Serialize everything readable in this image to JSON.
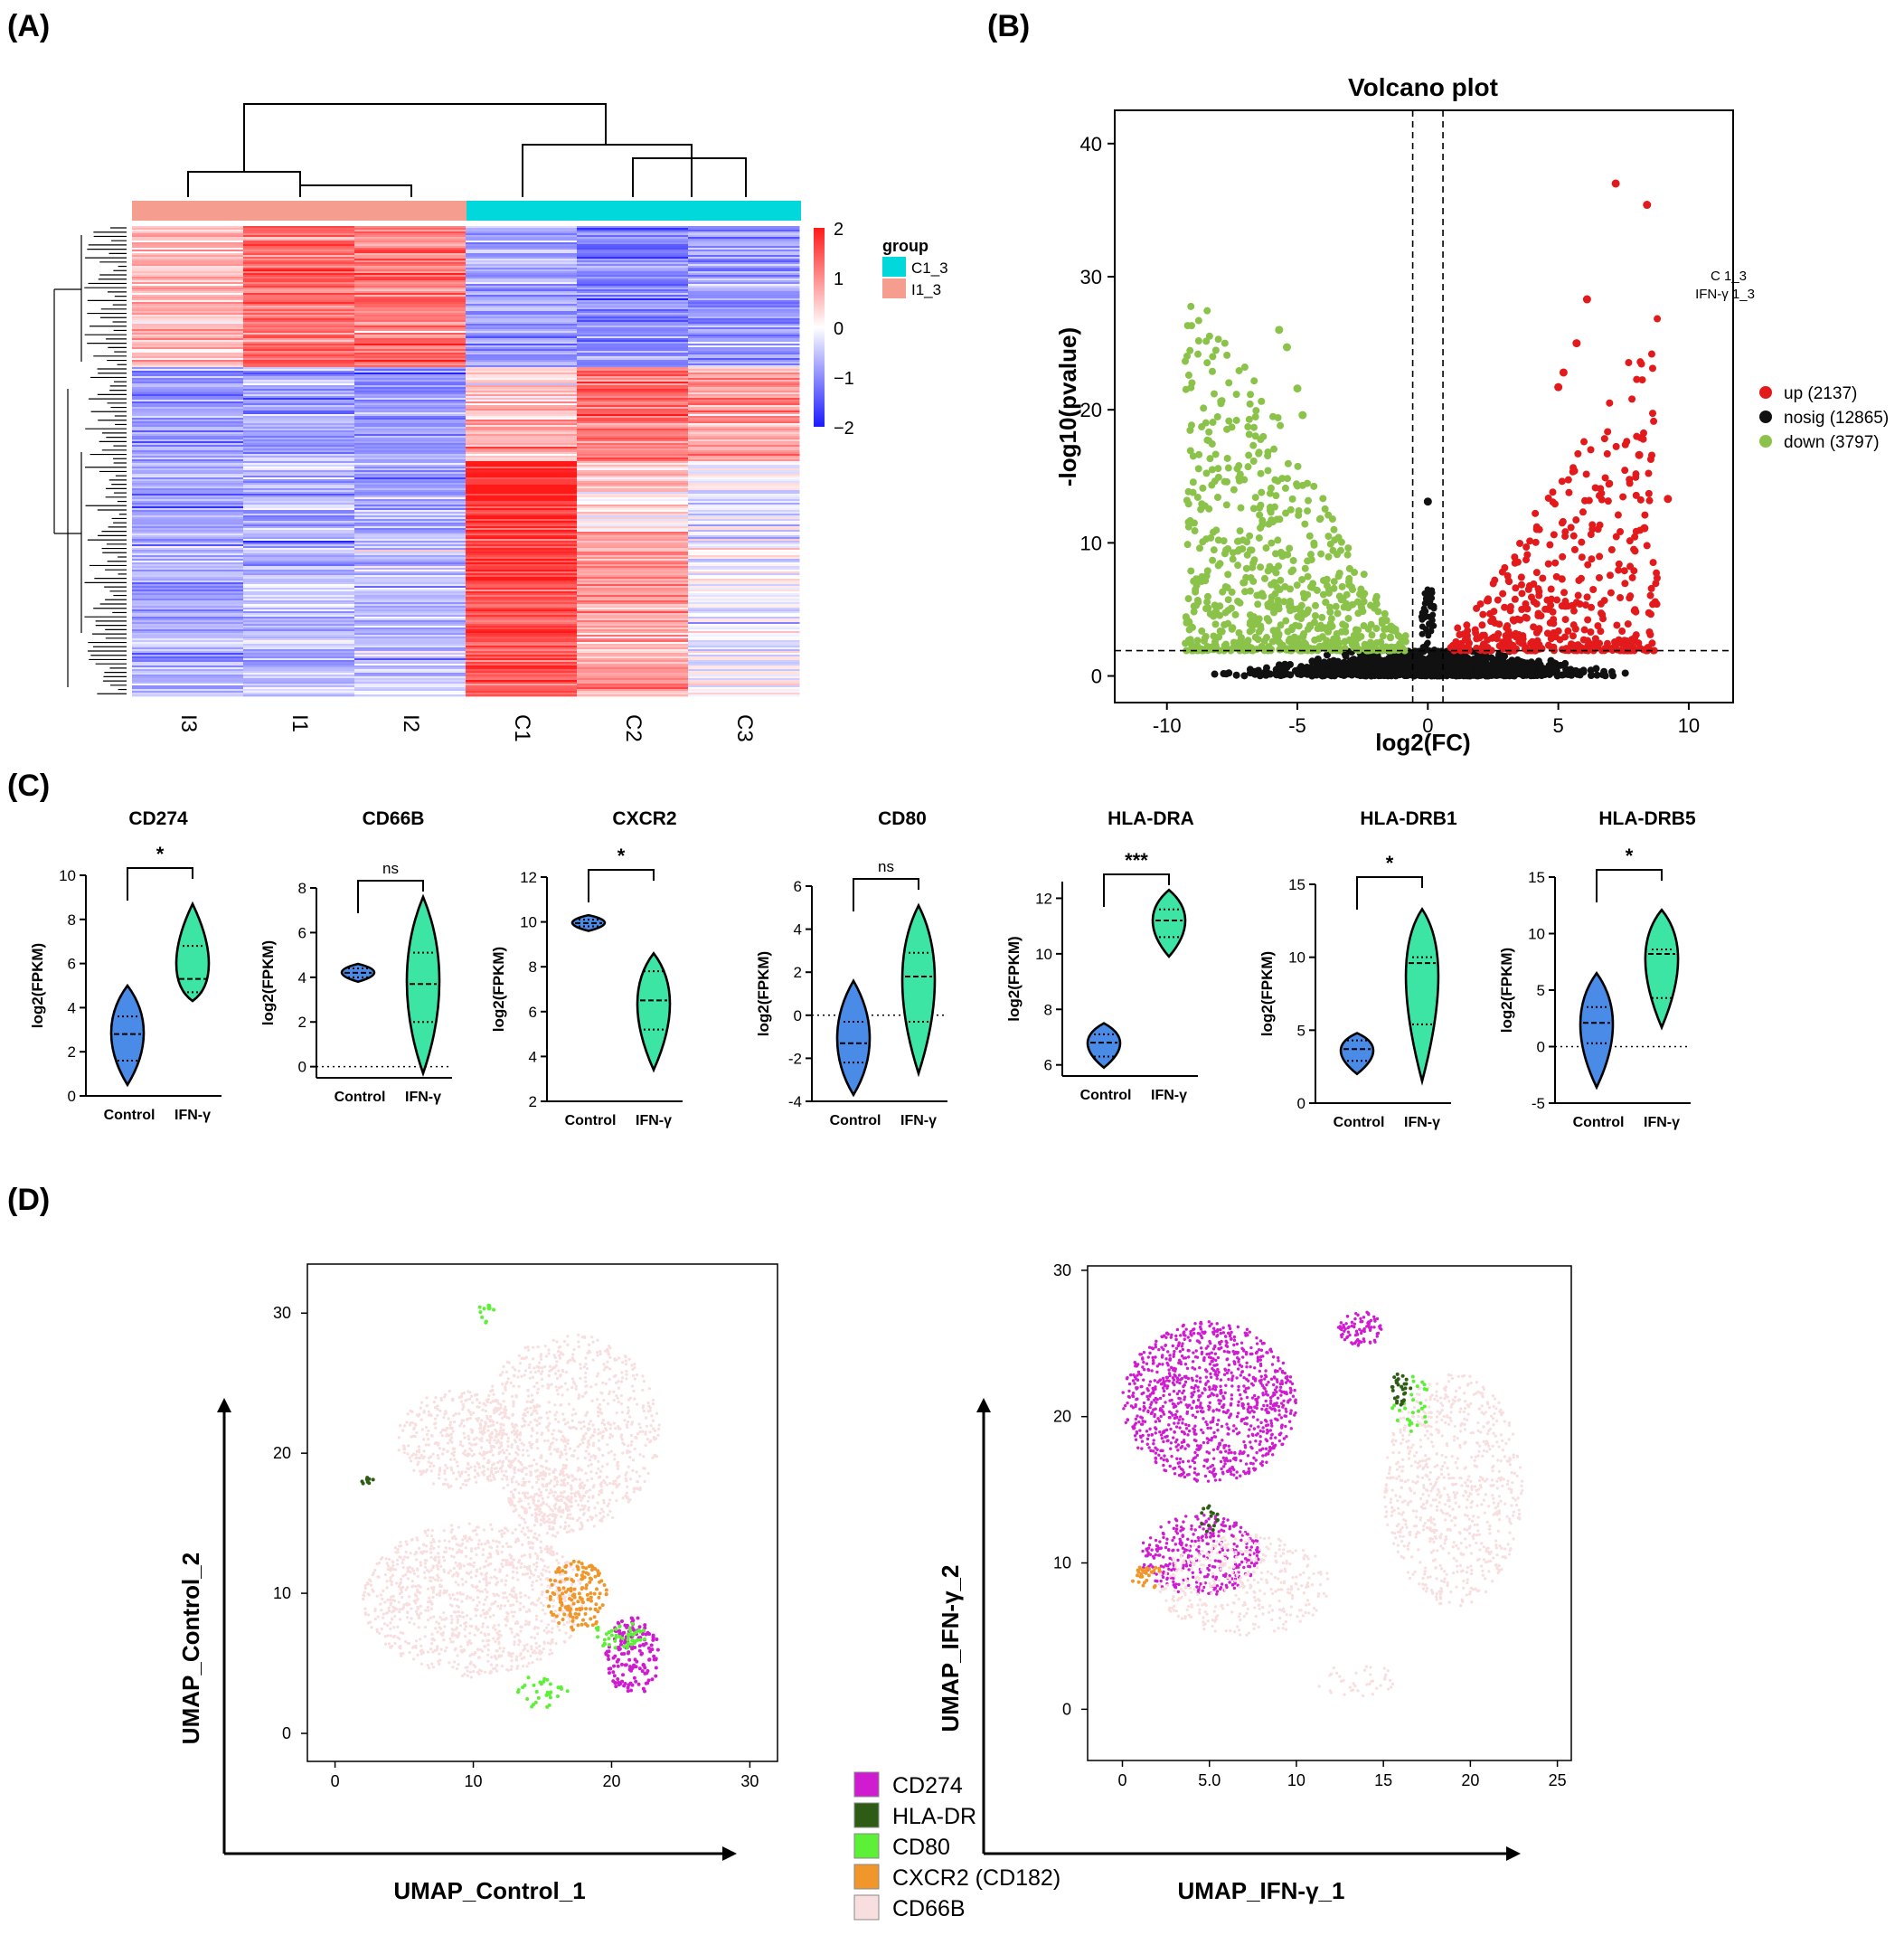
{
  "panels": {
    "a": "(A)",
    "b": "(B)",
    "c": "(C)",
    "d": "(D)"
  },
  "chart_data": [
    {
      "type": "heatmap",
      "panel": "(A)",
      "columns": [
        "I3",
        "I1",
        "I2",
        "C1",
        "C2",
        "C3"
      ],
      "column_groups": [
        "I1_3",
        "I1_3",
        "I1_3",
        "C1_3",
        "C1_3",
        "C1_3"
      ],
      "colorbar": {
        "ticks": [
          "2",
          "1",
          "0",
          "−1",
          "−2"
        ],
        "range": [
          -2,
          2
        ],
        "colors": {
          "high": "#ff1a1a",
          "mid": "#ffffff",
          "low": "#1a1aff"
        }
      },
      "legend": {
        "title": "group",
        "items": [
          {
            "label": "C1_3",
            "color": "#00d8dc"
          },
          {
            "label": "I1_3",
            "color": "#f59d8e"
          }
        ]
      },
      "blocks": [
        {
          "rows": 0.3,
          "values": [
            0.6,
            1.3,
            1.2,
            -0.8,
            -1.1,
            -0.9
          ]
        },
        {
          "rows": 0.2,
          "values": [
            -0.9,
            -0.8,
            -0.9,
            0.6,
            1.3,
            0.8
          ]
        },
        {
          "rows": 0.15,
          "values": [
            -0.8,
            -0.6,
            -0.7,
            1.8,
            0.4,
            -0.2
          ]
        },
        {
          "rows": 0.35,
          "values": [
            -0.7,
            -0.5,
            -0.6,
            1.5,
            0.8,
            -0.1
          ]
        }
      ]
    },
    {
      "type": "scatter",
      "panel": "(B)",
      "title": "Volcano plot",
      "xlabel": "log2(FC)",
      "ylabel": "-log10(pvalue)",
      "xlim": [
        -12,
        11.7
      ],
      "ylim": [
        -2,
        42.5
      ],
      "xticks": [
        "-10",
        "-5",
        "0",
        "5",
        "10"
      ],
      "yticks": [
        "0",
        "10",
        "20",
        "30",
        "40"
      ],
      "thresholds": {
        "x": [
          -0.58,
          0.58
        ],
        "y": 1.9
      },
      "side_label": [
        "C 1_3",
        "IFN-γ 1_3"
      ],
      "legend": [
        {
          "label": "up (2137)",
          "color": "#e31a1c"
        },
        {
          "label": "nosig (12865)",
          "color": "#111111"
        },
        {
          "label": "down (3797)",
          "color": "#8bc34a"
        }
      ],
      "series": [
        {
          "name": "up",
          "count": 2137,
          "color": "#e31a1c"
        },
        {
          "name": "nosig",
          "count": 12865,
          "color": "#111111"
        },
        {
          "name": "down",
          "count": 3797,
          "color": "#8bc34a"
        }
      ],
      "highlight_points": [
        {
          "x": 7.2,
          "y": 37.0
        },
        {
          "x": 8.4,
          "y": 35.4
        },
        {
          "x": 6.1,
          "y": 28.3
        },
        {
          "x": 5.7,
          "y": 25.0
        },
        {
          "x": 5.2,
          "y": 22.8
        },
        {
          "x": 5.0,
          "y": 21.7
        },
        {
          "x": 8.1,
          "y": 16.6
        },
        {
          "x": 9.2,
          "y": 13.3
        },
        {
          "x": 8.3,
          "y": 11.1
        },
        {
          "x": -5.7,
          "y": 26.0
        },
        {
          "x": -5.4,
          "y": 24.7
        },
        {
          "x": -5.0,
          "y": 21.6
        },
        {
          "x": -4.8,
          "y": 19.6
        },
        {
          "x": 0.0,
          "y": 13.1
        }
      ]
    },
    {
      "type": "violin",
      "panel": "(C)",
      "ylabel": "log2(FPKM)",
      "groups": [
        "Control",
        "IFN-γ"
      ],
      "colors": [
        "#4a8be8",
        "#3de5a5"
      ],
      "genes": [
        {
          "name": "CD274",
          "sig": "*",
          "yticks": [
            "0",
            "2",
            "4",
            "6",
            "8",
            "10"
          ],
          "ymin": 0,
          "ymax": 10,
          "control": {
            "min": 0.5,
            "max": 5.0,
            "q1": 1.6,
            "median": 2.8,
            "q3": 3.6
          },
          "ifng": {
            "min": 4.3,
            "max": 8.7,
            "q1": 4.7,
            "median": 5.3,
            "q3": 6.8
          },
          "zero_line": false
        },
        {
          "name": "CD66B",
          "sig": "ns",
          "yticks": [
            "0",
            "2",
            "4",
            "6",
            "8"
          ],
          "ymin": -0.5,
          "ymax": 8,
          "control": {
            "min": 3.8,
            "max": 4.6,
            "q1": 4.0,
            "median": 4.2,
            "q3": 4.4
          },
          "ifng": {
            "min": -0.3,
            "max": 7.6,
            "q1": 2.0,
            "median": 3.7,
            "q3": 5.1
          },
          "zero_line": true
        },
        {
          "name": "CXCR2",
          "sig": "*",
          "yticks": [
            "2",
            "4",
            "6",
            "8",
            "10",
            "12"
          ],
          "ymin": 2,
          "ymax": 12,
          "control": {
            "min": 9.6,
            "max": 10.3,
            "q1": 9.8,
            "median": 9.95,
            "q3": 10.1
          },
          "ifng": {
            "min": 3.4,
            "max": 8.6,
            "q1": 5.2,
            "median": 6.5,
            "q3": 7.8
          },
          "zero_line": false
        },
        {
          "name": "CD80",
          "sig": "ns",
          "yticks": [
            "-4",
            "-2",
            "0",
            "2",
            "4",
            "6"
          ],
          "ymin": -4,
          "ymax": 6,
          "control": {
            "min": -3.7,
            "max": 1.6,
            "q1": -2.2,
            "median": -1.3,
            "q3": -0.3
          },
          "ifng": {
            "min": -2.7,
            "max": 5.1,
            "q1": -0.3,
            "median": 1.8,
            "q3": 2.9
          },
          "zero_line": true
        },
        {
          "name": "HLA-DRA",
          "sig": "***",
          "yticks": [
            "6",
            "8",
            "10",
            "12"
          ],
          "ymin": 5.6,
          "ymax": 12.6,
          "control": {
            "min": 5.9,
            "max": 7.5,
            "q1": 6.3,
            "median": 6.8,
            "q3": 7.1
          },
          "ifng": {
            "min": 9.9,
            "max": 12.3,
            "q1": 10.6,
            "median": 11.2,
            "q3": 11.6
          },
          "zero_line": false
        },
        {
          "name": "HLA-DRB1",
          "sig": "*",
          "yticks": [
            "0",
            "5",
            "10",
            "15"
          ],
          "ymin": 0,
          "ymax": 15,
          "control": {
            "min": 2.0,
            "max": 4.8,
            "q1": 2.9,
            "median": 3.7,
            "q3": 4.3
          },
          "ifng": {
            "min": 1.5,
            "max": 13.3,
            "q1": 5.4,
            "median": 9.6,
            "q3": 10.0
          },
          "zero_line": false
        },
        {
          "name": "HLA-DRB5",
          "sig": "*",
          "yticks": [
            "-5",
            "0",
            "5",
            "10",
            "15"
          ],
          "ymin": -5,
          "ymax": 15,
          "control": {
            "min": -3.6,
            "max": 6.5,
            "q1": 0.3,
            "median": 2.1,
            "q3": 3.5
          },
          "ifng": {
            "min": 1.7,
            "max": 12.1,
            "q1": 4.3,
            "median": 8.2,
            "q3": 8.6
          },
          "zero_line": true
        }
      ]
    },
    {
      "type": "scatter",
      "panel": "(D)",
      "subtype": "umap",
      "plots": [
        {
          "name": "control",
          "xlabel": "UMAP_Control_1",
          "ylabel": "UMAP_Control_2",
          "xlim": [
            -2,
            32
          ],
          "ylim": [
            -2,
            33.5
          ],
          "xticks": [
            "0",
            "10",
            "20",
            "30"
          ],
          "yticks": [
            "0",
            "10",
            "20",
            "30"
          ]
        },
        {
          "name": "ifng",
          "xlabel": "UMAP_IFN-γ_1",
          "ylabel": "UMAP_IFN-γ_2",
          "xlim": [
            -2,
            25.8
          ],
          "ylim": [
            -3.5,
            30.3
          ],
          "xticks": [
            "0",
            "5.0",
            "10",
            "15",
            "20",
            "25"
          ],
          "yticks": [
            "0",
            "10",
            "20",
            "30"
          ]
        }
      ],
      "legend": [
        {
          "label": "CD274",
          "color": "#d01cd0"
        },
        {
          "label": "HLA-DR",
          "color": "#2e5c14"
        },
        {
          "label": "CD80",
          "color": "#5cf037"
        },
        {
          "label": "CXCR2 (CD182)",
          "color": "#f0962a"
        },
        {
          "label": "CD66B",
          "color": "#f8dede"
        }
      ]
    }
  ]
}
